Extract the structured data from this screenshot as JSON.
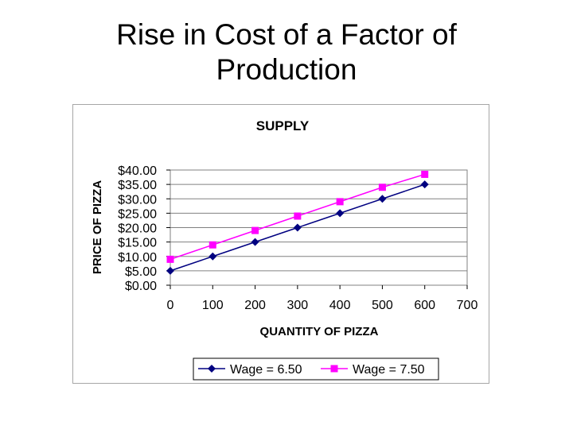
{
  "slide": {
    "title_line1": "Rise in Cost of a Factor of",
    "title_line2": "Production"
  },
  "chart_data": {
    "type": "line",
    "title": "SUPPLY",
    "xlabel": "QUANTITY OF PIZZA",
    "ylabel": "PRICE OF PIZZA",
    "x": [
      0,
      100,
      200,
      300,
      400,
      500,
      600
    ],
    "xlim": [
      0,
      700
    ],
    "ylim": [
      0,
      40
    ],
    "x_ticks": [
      "0",
      "100",
      "200",
      "300",
      "400",
      "500",
      "600",
      "700"
    ],
    "y_ticks": [
      "$0.00",
      "$5.00",
      "$10.00",
      "$15.00",
      "$20.00",
      "$25.00",
      "$30.00",
      "$35.00",
      "$40.00"
    ],
    "grid": "horizontal",
    "legend_position": "bottom",
    "series": [
      {
        "name": "Wage = 6.50",
        "values": [
          5,
          10,
          15,
          20,
          25,
          30,
          35
        ],
        "color": "#000080",
        "marker": "diamond"
      },
      {
        "name": "Wage = 7.50",
        "values": [
          9,
          14,
          19,
          24,
          29,
          34,
          38.5
        ],
        "color": "#ff00ff",
        "marker": "square"
      }
    ]
  }
}
